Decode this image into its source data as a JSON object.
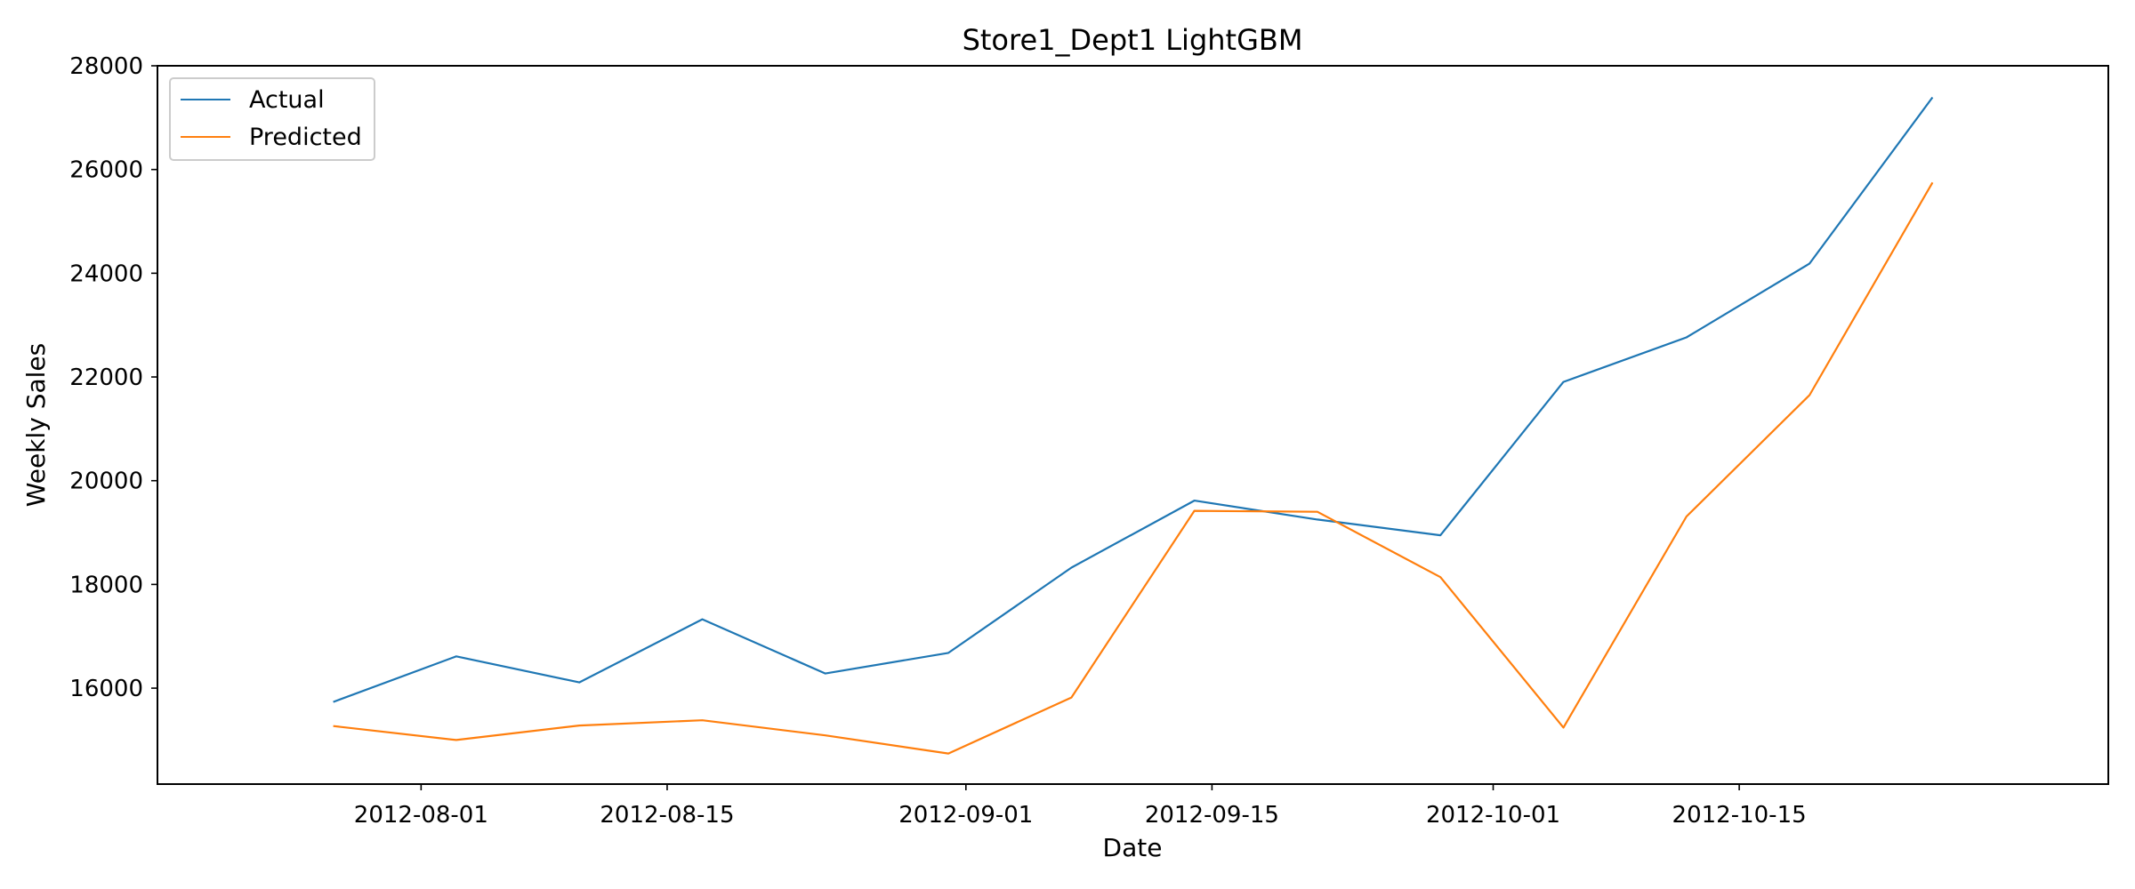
{
  "chart_data": {
    "type": "line",
    "title": "Store1_Dept1 LightGBM",
    "xlabel": "Date",
    "ylabel": "Weekly Sales",
    "x": [
      "2012-07-27",
      "2012-08-03",
      "2012-08-10",
      "2012-08-17",
      "2012-08-24",
      "2012-08-31",
      "2012-09-07",
      "2012-09-14",
      "2012-09-21",
      "2012-09-28",
      "2012-10-05",
      "2012-10-12",
      "2012-10-19",
      "2012-10-26"
    ],
    "series": [
      {
        "name": "Actual",
        "color": "#1f77b4",
        "values": [
          15733,
          16613,
          16111,
          17328,
          16283,
          16680,
          18323,
          19616,
          19251,
          18947,
          21905,
          22764,
          24186,
          27391
        ]
      },
      {
        "name": "Predicted",
        "color": "#ff7f0e",
        "values": [
          15270,
          15000,
          15280,
          15380,
          15090,
          14740,
          15820,
          19420,
          19400,
          18140,
          15240,
          19310,
          21650,
          25750
        ]
      }
    ],
    "xticks": [
      "2012-08-01",
      "2012-08-15",
      "2012-09-01",
      "2012-09-15",
      "2012-10-01",
      "2012-10-15"
    ],
    "yticks": [
      16000,
      18000,
      20000,
      22000,
      24000,
      26000,
      28000
    ],
    "xlim": [
      "2012-07-17",
      "2012-11-05"
    ],
    "ylim": [
      14150,
      28000
    ],
    "grid": false,
    "legend_position": "top-left"
  }
}
